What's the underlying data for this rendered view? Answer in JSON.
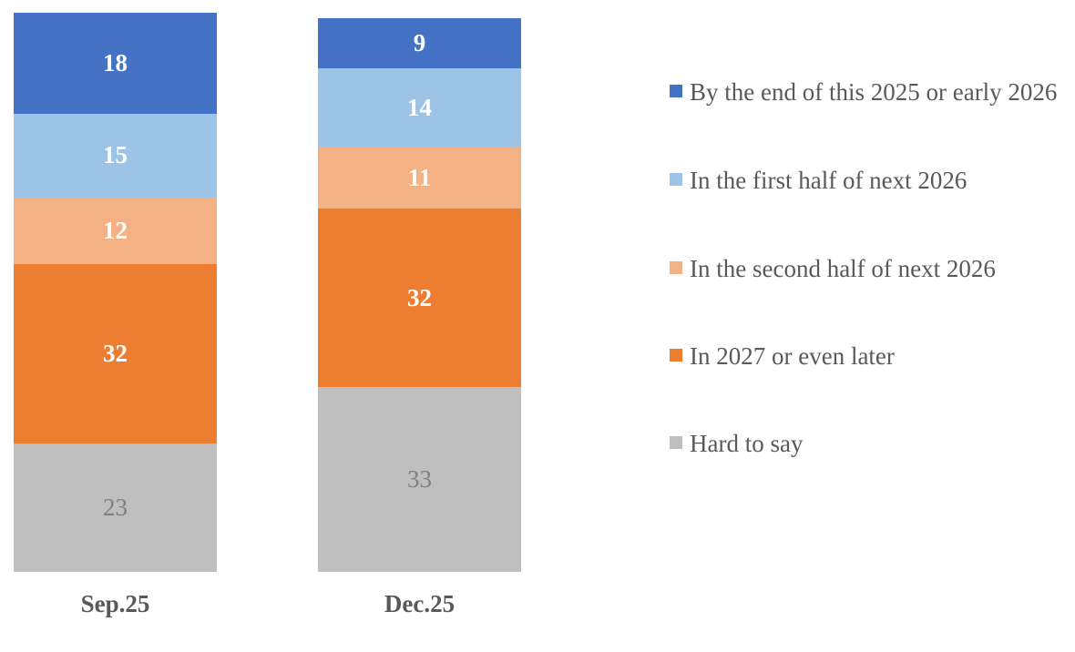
{
  "chart_data": {
    "type": "bar",
    "stacked": true,
    "title": "",
    "xlabel": "",
    "ylabel": "",
    "ylim": [
      0,
      100
    ],
    "grid": false,
    "legend_position": "right",
    "text_color": "#595959",
    "categories": [
      "Sep.25",
      "Dec.25"
    ],
    "series": [
      {
        "name": "By the end of this 2025 or early 2026",
        "color": "#4472C4",
        "values": [
          18,
          9
        ],
        "label_color": "#FFFFFF",
        "label_bold": true
      },
      {
        "name": "In the first half of next 2026",
        "color": "#9DC3E6",
        "values": [
          15,
          14
        ],
        "label_color": "#FFFFFF",
        "label_bold": true
      },
      {
        "name": "In the second half of next 2026",
        "color": "#F4B183",
        "values": [
          12,
          11
        ],
        "label_color": "#FFFFFF",
        "label_bold": true
      },
      {
        "name": "In 2027 or even later",
        "color": "#ED7D31",
        "values": [
          32,
          32
        ],
        "label_color": "#FFFFFF",
        "label_bold": true
      },
      {
        "name": "Hard to say",
        "color": "#BFBFBF",
        "values": [
          23,
          33
        ],
        "label_color": "#7F7F7F",
        "label_bold": false
      }
    ]
  }
}
